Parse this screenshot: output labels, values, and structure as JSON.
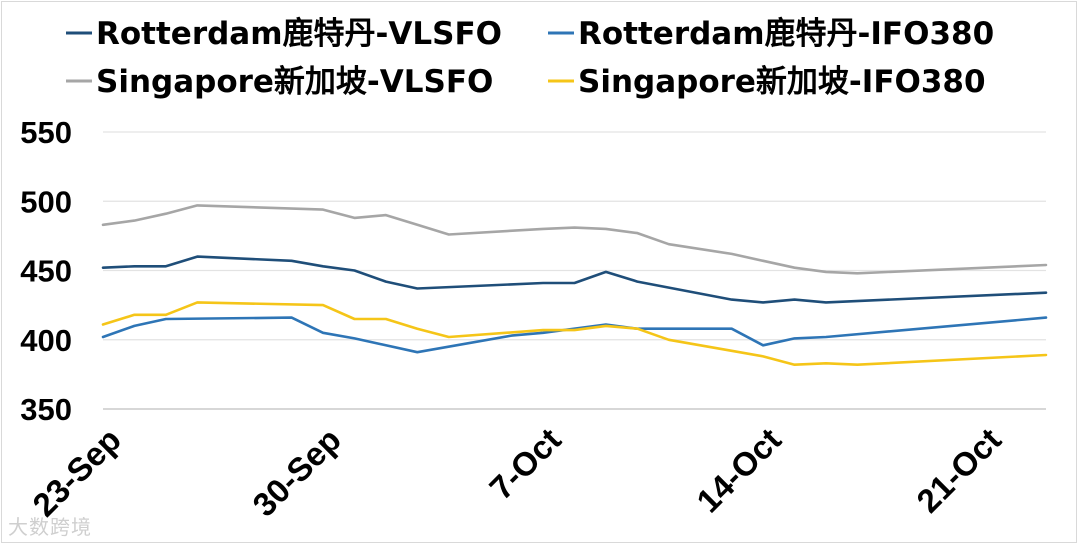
{
  "chart_data": {
    "type": "line",
    "title": "",
    "xlabel": "",
    "ylabel": "",
    "ylim": [
      350,
      550
    ],
    "yticks": [
      350,
      400,
      450,
      500,
      550
    ],
    "xticks": [
      {
        "x": 0,
        "label": "23-Sep"
      },
      {
        "x": 7,
        "label": "30-Sep"
      },
      {
        "x": 14,
        "label": "7-Oct"
      },
      {
        "x": 21,
        "label": "14-Oct"
      },
      {
        "x": 28,
        "label": "21-Oct"
      }
    ],
    "xrange": [
      0,
      30
    ],
    "grid": "horizontal",
    "legend_position": "top",
    "series": [
      {
        "name": "Rotterdam鹿特丹-VLSFO",
        "color": "#1f4e79",
        "points": [
          [
            0,
            452
          ],
          [
            1,
            453
          ],
          [
            2,
            453
          ],
          [
            3,
            460
          ],
          [
            6,
            457
          ],
          [
            7,
            453
          ],
          [
            8,
            450
          ],
          [
            9,
            442
          ],
          [
            10,
            437
          ],
          [
            14,
            441
          ],
          [
            15,
            441
          ],
          [
            16,
            449
          ],
          [
            17,
            442
          ],
          [
            20,
            429
          ],
          [
            21,
            427
          ],
          [
            22,
            429
          ],
          [
            23,
            427
          ],
          [
            30,
            434
          ]
        ]
      },
      {
        "name": "Rotterdam鹿特丹-IFO380",
        "color": "#2e75b6",
        "points": [
          [
            0,
            402
          ],
          [
            1,
            410
          ],
          [
            2,
            415
          ],
          [
            6,
            416
          ],
          [
            7,
            405
          ],
          [
            8,
            401
          ],
          [
            10,
            391
          ],
          [
            13,
            403
          ],
          [
            14,
            405
          ],
          [
            16,
            411
          ],
          [
            17,
            408
          ],
          [
            20,
            408
          ],
          [
            21,
            396
          ],
          [
            22,
            401
          ],
          [
            23,
            402
          ],
          [
            30,
            416
          ]
        ]
      },
      {
        "name": "Singapore新加坡-VLSFO",
        "color": "#a6a6a6",
        "points": [
          [
            0,
            483
          ],
          [
            1,
            486
          ],
          [
            2,
            491
          ],
          [
            3,
            497
          ],
          [
            7,
            494
          ],
          [
            8,
            488
          ],
          [
            9,
            490
          ],
          [
            10,
            483
          ],
          [
            11,
            476
          ],
          [
            14,
            480
          ],
          [
            15,
            481
          ],
          [
            16,
            480
          ],
          [
            17,
            477
          ],
          [
            18,
            469
          ],
          [
            20,
            462
          ],
          [
            21,
            457
          ],
          [
            22,
            452
          ],
          [
            23,
            449
          ],
          [
            24,
            448
          ],
          [
            30,
            454
          ]
        ]
      },
      {
        "name": "Singapore新加坡-IFO380",
        "color": "#f5c518",
        "points": [
          [
            0,
            411
          ],
          [
            1,
            418
          ],
          [
            2,
            418
          ],
          [
            3,
            427
          ],
          [
            7,
            425
          ],
          [
            8,
            415
          ],
          [
            9,
            415
          ],
          [
            10,
            408
          ],
          [
            11,
            402
          ],
          [
            14,
            407
          ],
          [
            15,
            407
          ],
          [
            16,
            410
          ],
          [
            17,
            408
          ],
          [
            18,
            400
          ],
          [
            20,
            392
          ],
          [
            21,
            388
          ],
          [
            22,
            382
          ],
          [
            23,
            383
          ],
          [
            24,
            382
          ],
          [
            30,
            389
          ]
        ]
      }
    ]
  },
  "watermark": "大数跨境"
}
